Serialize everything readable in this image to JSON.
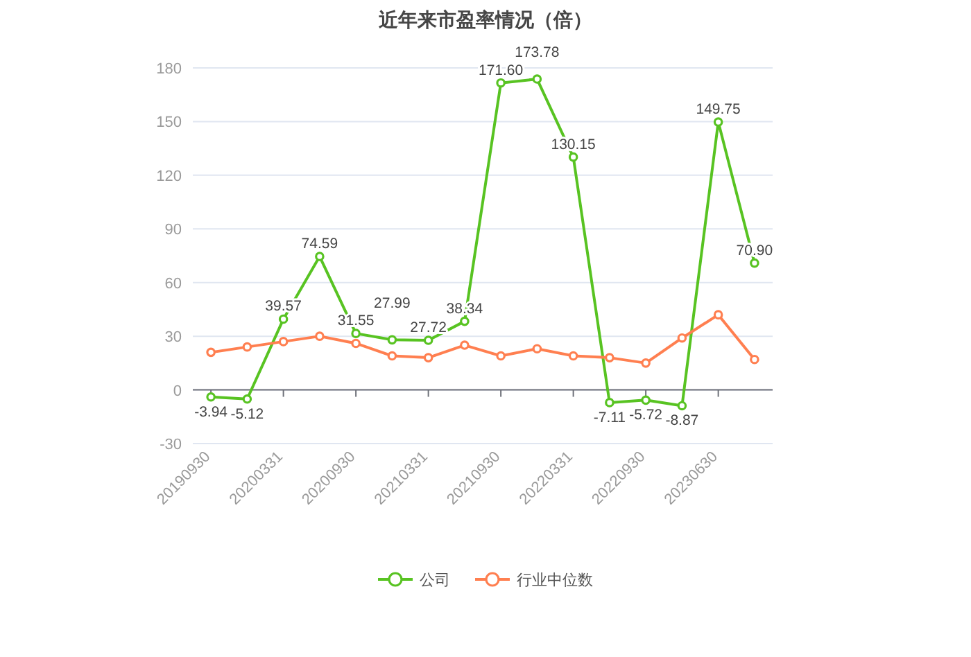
{
  "chart_data": {
    "type": "line",
    "title": "近年来市盈率情况（倍）",
    "categories": [
      "20190930",
      null,
      "20200331",
      null,
      "20200930",
      null,
      "20210331",
      null,
      "20210930",
      null,
      "20220331",
      null,
      "20220930",
      null,
      "20230630",
      null
    ],
    "series": [
      {
        "name": "公司",
        "color": "#58c322",
        "values": [
          -3.94,
          -5.12,
          39.57,
          74.59,
          31.55,
          27.99,
          27.72,
          38.34,
          171.6,
          173.78,
          130.15,
          -7.11,
          -5.72,
          -8.87,
          149.75,
          70.9
        ],
        "value_labels": [
          "-3.94",
          "-5.12",
          "39.57",
          "74.59",
          "31.55",
          "27.99",
          "27.72",
          "38.34",
          "171.60",
          "173.78",
          "130.15",
          "-7.11",
          "-5.72",
          "-8.87",
          "149.75",
          "70.90"
        ]
      },
      {
        "name": "行业中位数",
        "color": "#ff7f50",
        "values": [
          21,
          24,
          27,
          30,
          26,
          19,
          18,
          25,
          19,
          23,
          19,
          18,
          15,
          29,
          42,
          17
        ]
      }
    ],
    "ylim": [
      -30,
      180
    ],
    "yticks": [
      -30,
      0,
      30,
      60,
      90,
      120,
      150,
      180
    ],
    "grid": "y",
    "legend": "bottom",
    "marker": "circle",
    "line_style": "solid"
  }
}
